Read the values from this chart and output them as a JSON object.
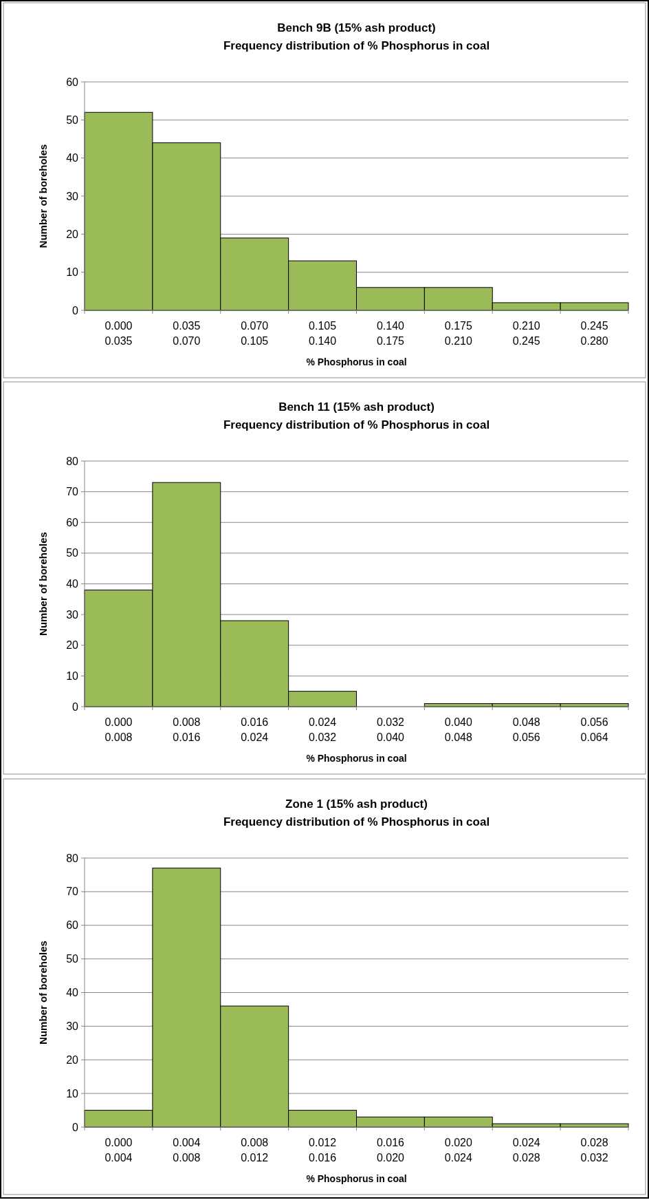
{
  "chart_data": [
    {
      "type": "bar",
      "title": "Bench 9B (15% ash product)",
      "subtitle": "Frequency distribution of % Phosphorus in coal",
      "xlabel": "% Phosphorus in coal",
      "ylabel": "Number of boreholes",
      "categories": [
        "0.000\n0.035",
        "0.035\n0.070",
        "0.070\n0.105",
        "0.105\n0.140",
        "0.140\n0.175",
        "0.175\n0.210",
        "0.210\n0.245",
        "0.245\n0.280"
      ],
      "values": [
        52,
        44,
        19,
        13,
        6,
        6,
        2,
        2
      ],
      "color": "#9bbb59",
      "ylim": [
        0,
        60
      ],
      "yticks": [
        0,
        10,
        20,
        30,
        40,
        50,
        60
      ],
      "grid": "y"
    },
    {
      "type": "bar",
      "title": "Bench 11 (15% ash product)",
      "subtitle": "Frequency distribution of % Phosphorus in coal",
      "xlabel": "% Phosphorus in coal",
      "ylabel": "Number of boreholes",
      "categories": [
        "0.000\n0.008",
        "0.008\n0.016",
        "0.016\n0.024",
        "0.024\n0.032",
        "0.032\n0.040",
        "0.040\n0.048",
        "0.048\n0.056",
        "0.056\n0.064"
      ],
      "values": [
        38,
        73,
        28,
        5,
        0,
        1,
        1,
        1
      ],
      "color": "#9bbb59",
      "ylim": [
        0,
        80
      ],
      "yticks": [
        0,
        10,
        20,
        30,
        40,
        50,
        60,
        70,
        80
      ],
      "grid": "y"
    },
    {
      "type": "bar",
      "title": "Zone 1 (15% ash product)",
      "subtitle": "Frequency distribution of % Phosphorus in coal",
      "xlabel": "% Phosphorus in coal",
      "ylabel": "Number of boreholes",
      "categories": [
        "0.000\n0.004",
        "0.004\n0.008",
        "0.008\n0.012",
        "0.012\n0.016",
        "0.016\n0.020",
        "0.020\n0.024",
        "0.024\n0.028",
        "0.028\n0.032"
      ],
      "values": [
        5,
        77,
        36,
        5,
        3,
        3,
        1,
        1
      ],
      "color": "#9bbb59",
      "ylim": [
        0,
        80
      ],
      "yticks": [
        0,
        10,
        20,
        30,
        40,
        50,
        60,
        70,
        80
      ],
      "grid": "y"
    }
  ]
}
